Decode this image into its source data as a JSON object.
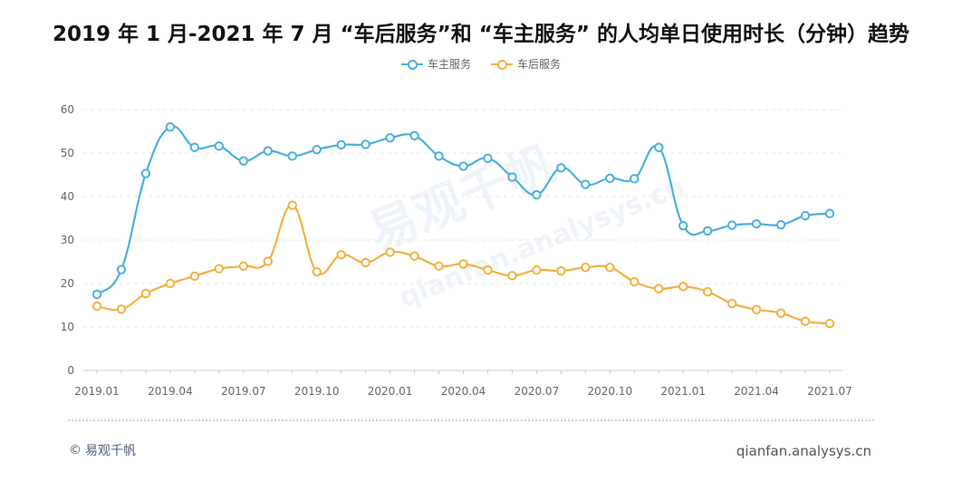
{
  "title": "2019 年 1 月-2021 年 7 月 “车后服务”和 “车主服务” 的人均单日使用时长（分钟）趋势",
  "watermark": "易观千帆",
  "watermark_sub": "qianfan.analysys.cn",
  "footer": {
    "copyright_symbol": "©",
    "brand": "易观千帆",
    "site": "qianfan.analysys.cn"
  },
  "chart_data": {
    "type": "line",
    "title": "2019 年 1 月-2021 年 7 月 “车后服务”和 “车主服务” 的人均单日使用时长（分钟）趋势",
    "xlabel": "",
    "ylabel": "",
    "ylim": [
      0,
      60
    ],
    "yticks": [
      0,
      10,
      20,
      30,
      40,
      50,
      60
    ],
    "grid": true,
    "legend_position": "top-center",
    "x_tick_labels": [
      "2019.01",
      "2019.04",
      "2019.07",
      "2019.10",
      "2020.01",
      "2020.04",
      "2020.07",
      "2020.10",
      "2021.01",
      "2021.04",
      "2021.07"
    ],
    "x_tick_index": [
      0,
      3,
      6,
      9,
      12,
      15,
      18,
      21,
      24,
      27,
      30
    ],
    "x": [
      "2019.01",
      "2019.02",
      "2019.03",
      "2019.04",
      "2019.05",
      "2019.06",
      "2019.07",
      "2019.08",
      "2019.09",
      "2019.10",
      "2019.11",
      "2019.12",
      "2020.01",
      "2020.02",
      "2020.03",
      "2020.04",
      "2020.05",
      "2020.06",
      "2020.07",
      "2020.08",
      "2020.09",
      "2020.10",
      "2020.11",
      "2020.12",
      "2021.01",
      "2021.02",
      "2021.03",
      "2021.04",
      "2021.05",
      "2021.06",
      "2021.07"
    ],
    "series": [
      {
        "name": "车主服务",
        "color": "#4ab0dc",
        "values": [
          17.5,
          23.2,
          45.3,
          56.0,
          51.3,
          51.6,
          48.2,
          50.5,
          49.3,
          50.8,
          51.9,
          52.0,
          53.5,
          54.0,
          49.3,
          47.0,
          48.8,
          44.5,
          40.4,
          46.6,
          42.8,
          44.2,
          44.1,
          51.3,
          33.3,
          32.1,
          33.4,
          33.7,
          33.5,
          35.6,
          36.1
        ]
      },
      {
        "name": "车后服务",
        "color": "#f5b041",
        "values": [
          14.8,
          14.1,
          17.7,
          20.0,
          21.7,
          23.4,
          24.0,
          25.1,
          38.0,
          22.7,
          26.6,
          24.8,
          27.2,
          26.3,
          24.0,
          24.5,
          23.1,
          21.8,
          23.1,
          22.9,
          23.7,
          23.7,
          20.4,
          18.8,
          19.3,
          18.1,
          15.4,
          14.0,
          13.2,
          11.3,
          10.8
        ]
      }
    ]
  }
}
